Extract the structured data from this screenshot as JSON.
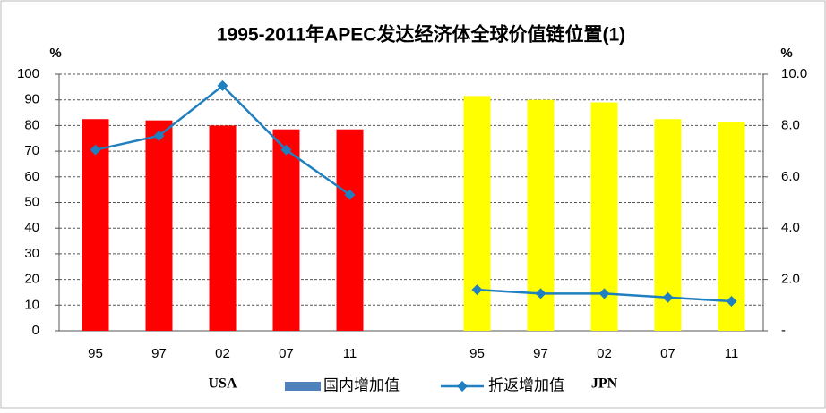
{
  "chart_data": {
    "type": "bar_line",
    "title": "1995-2011年APEC发达经济体全球价值链位置(1)",
    "y_label": "%",
    "y2_label": "%",
    "categories": [
      "95",
      "97",
      "02",
      "07",
      "11",
      null,
      "95",
      "97",
      "02",
      "07",
      "11"
    ],
    "group_labels": [
      "USA",
      "JPN"
    ],
    "series": [
      {
        "name": "国内增加值",
        "type": "bar",
        "color": "#4f81bd",
        "point_colors": [
          "#ff0000",
          "#ff0000",
          "#ff0000",
          "#ff0000",
          "#ff0000",
          null,
          "#ffff00",
          "#ffff00",
          "#ffff00",
          "#ffff00",
          "#ffff00"
        ],
        "values": [
          82.5,
          82,
          80,
          78.5,
          78.5,
          null,
          91.5,
          90,
          89,
          82.5,
          81.5
        ]
      },
      {
        "name": "折返增加值",
        "type": "line",
        "axis": "y2",
        "color": "#1f7fbf",
        "values": [
          7.05,
          7.6,
          9.55,
          7.05,
          5.3,
          null,
          1.6,
          1.45,
          1.45,
          1.3,
          1.15
        ]
      }
    ],
    "ylim": [
      0,
      100
    ],
    "yticks": [
      0,
      10,
      20,
      30,
      40,
      50,
      60,
      70,
      80,
      90,
      100
    ],
    "y2lim": [
      0,
      10
    ],
    "y2ticks": [
      {
        "value": 0,
        "label": "-"
      },
      {
        "value": 2,
        "label": "2.0"
      },
      {
        "value": 4,
        "label": "4.0"
      },
      {
        "value": 6,
        "label": "6.0"
      },
      {
        "value": 8,
        "label": "8.0"
      },
      {
        "value": 10,
        "label": "10.0"
      }
    ],
    "grid": true
  }
}
